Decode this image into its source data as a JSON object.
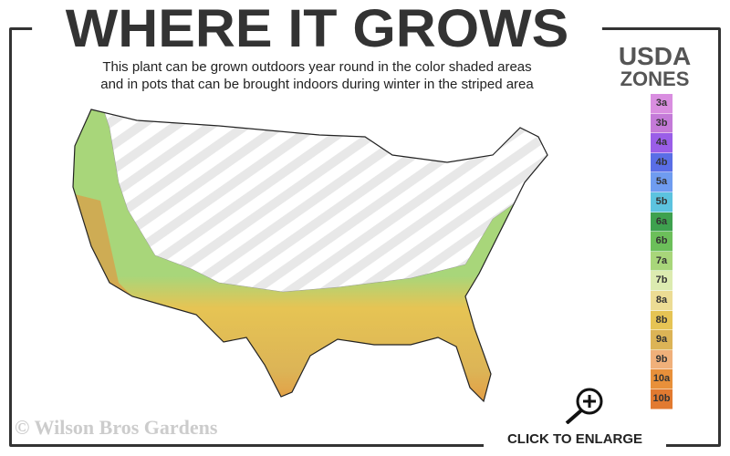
{
  "header": {
    "title": "WHERE IT GROWS",
    "subtitle_line1": "This plant can be grown outdoors year round in the color shaded areas",
    "subtitle_line2": "and in pots that can be brought indoors during winter in the striped area"
  },
  "legend": {
    "title_line1": "USDA",
    "title_line2": "ZONES",
    "zones": [
      {
        "label": "3a",
        "color": "#d98ee0"
      },
      {
        "label": "3b",
        "color": "#c47ad8"
      },
      {
        "label": "4a",
        "color": "#9a5ee8"
      },
      {
        "label": "4b",
        "color": "#5a6ee6"
      },
      {
        "label": "5a",
        "color": "#6f9cf0"
      },
      {
        "label": "5b",
        "color": "#5cc3df"
      },
      {
        "label": "6a",
        "color": "#3ea14f"
      },
      {
        "label": "6b",
        "color": "#6cbf5a"
      },
      {
        "label": "7a",
        "color": "#a8d67a"
      },
      {
        "label": "7b",
        "color": "#dcebb0"
      },
      {
        "label": "8a",
        "color": "#ecdc94"
      },
      {
        "label": "8b",
        "color": "#e6c454"
      },
      {
        "label": "9a",
        "color": "#dcb456"
      },
      {
        "label": "9b",
        "color": "#f0b07a"
      },
      {
        "label": "10a",
        "color": "#e8903a"
      },
      {
        "label": "10b",
        "color": "#e27a30"
      }
    ]
  },
  "footer": {
    "copyright": "© Wilson Bros Gardens",
    "enlarge_label": "CLICK TO ENLARGE"
  },
  "icons": {
    "enlarge": "magnifier-plus-icon"
  }
}
